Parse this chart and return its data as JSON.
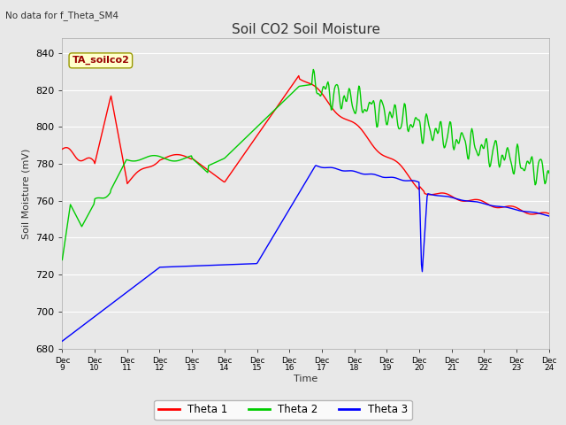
{
  "title": "Soil CO2 Soil Moisture",
  "ylabel": "Soil Moisture (mV)",
  "xlabel": "Time",
  "top_left_text": "No data for f_Theta_SM4",
  "annotation_box": "TA_soilco2",
  "ylim": [
    680,
    848
  ],
  "yticks": [
    680,
    700,
    720,
    740,
    760,
    780,
    800,
    820,
    840
  ],
  "plot_bg_color": "#e8e8e8",
  "grid_color": "#ffffff",
  "xtick_labels": [
    "Dec 9",
    "Dec 10",
    "Dec 11",
    "Dec 12",
    "Dec 13",
    "Dec 14",
    "Dec 15",
    "Dec 16",
    "Dec 17",
    "Dec 18",
    "Dec 19",
    "Dec 20",
    "Dec 21",
    "Dec 22",
    "Dec 23",
    "Dec 24"
  ],
  "legend_entries": [
    "Theta 1",
    "Theta 2",
    "Theta 3"
  ],
  "legend_colors": [
    "#ff0000",
    "#00cc00",
    "#0000ff"
  ],
  "line_colors": {
    "theta1": "#ff0000",
    "theta2": "#00cc00",
    "theta3": "#0000ff"
  }
}
